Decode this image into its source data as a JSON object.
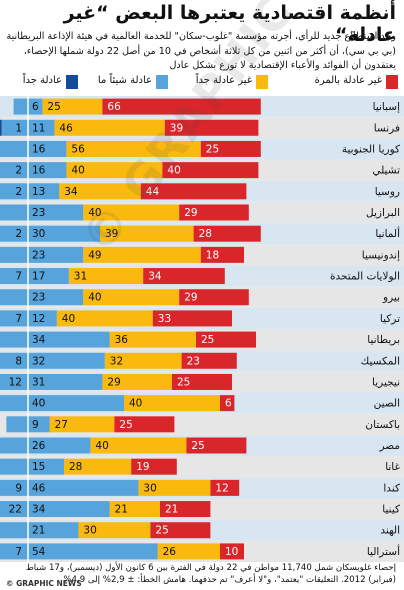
{
  "title": "أنظمة اقتصادية يعتبرها البعض “غير عادلة“",
  "subtitle": "وجد استطلاع جديد للرأي، أجرته مؤسسة \"غلوب-سكان\" للخدمة العالمية في هيئة الإذاعة البريطانية (بي بي سي)، أن أكثر من اثنين من كل ثلاثة أشخاص في 10 من أصل 22 دولة شملها الإحصاء، يعتقدون أن الفوائد والأعباء الإقتصادية لا توزع بشكل عادل",
  "colors": {
    "very_unfair": "#d9262b",
    "somewhat_unfair": "#f9b90f",
    "somewhat_fair": "#57a3db",
    "very_fair": "#124b97",
    "row_light": "#d8e6f2",
    "row_dark": "#e6e6e6"
  },
  "chart_data": {
    "type": "bar",
    "stacked": true,
    "orientation": "horizontal",
    "categories": [
      "إسبانيا",
      "فرنسا",
      "كوريا الجنوبية",
      "تشيلي",
      "روسيا",
      "البرازيل",
      "ألمانيا",
      "إندونيسيا",
      "الولايات المتحدة",
      "بيرو",
      "تركيا",
      "بريطانيا",
      "المكسيك",
      "نيجيريا",
      "الصين",
      "باكستان",
      "مصر",
      "غانا",
      "كندا",
      "كينيا",
      "الهند",
      "أستراليا"
    ],
    "series": [
      {
        "name": "عادلة جداً",
        "values": [
          null,
          1,
          null,
          2,
          2,
          null,
          2,
          null,
          7,
          null,
          7,
          null,
          8,
          12,
          null,
          null,
          null,
          null,
          9,
          22,
          null,
          7
        ]
      },
      {
        "name": "عادلة شيئاً ما",
        "values": [
          6,
          11,
          16,
          16,
          13,
          23,
          30,
          23,
          17,
          23,
          12,
          34,
          32,
          31,
          40,
          9,
          26,
          15,
          46,
          34,
          21,
          54
        ]
      },
      {
        "name": "غير عادلة جداً",
        "values": [
          25,
          46,
          56,
          40,
          34,
          40,
          39,
          49,
          31,
          40,
          40,
          36,
          32,
          29,
          40,
          27,
          40,
          28,
          30,
          21,
          30,
          26
        ]
      },
      {
        "name": "غير عادلة بالمرة",
        "values": [
          66,
          39,
          25,
          40,
          44,
          29,
          28,
          18,
          34,
          29,
          33,
          25,
          23,
          25,
          6,
          25,
          25,
          19,
          12,
          21,
          25,
          10
        ]
      }
    ],
    "legend": [
      "غير عادلة بالمرة",
      "غير عادلة جداً",
      "عادلة شيئاً ما",
      "عادلة جداً"
    ]
  },
  "footer": "إحصاء غلوبسكان شمل 11,740 مواطن في 22 دولة في الفترة بين 6 كانون الأول (ديسمبر)، و17 شباط (فبراير) 2012. التعليقات \"يعتمد\"، و\"لا أعرف\" تم حذفهما. هامش الخطأ: ± 2,9% إلى 4,9%",
  "credit": "© GRAPHIC NEWS",
  "watermark": "© GRAPHIC NEWS"
}
